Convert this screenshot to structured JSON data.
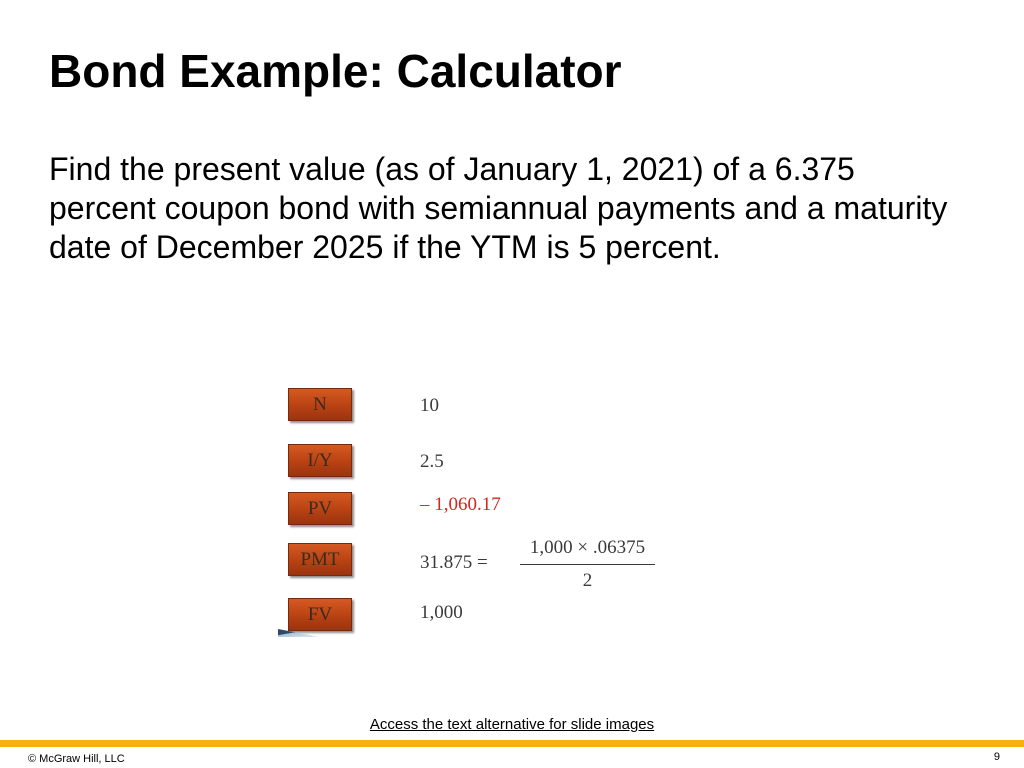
{
  "slide": {
    "title": "Bond Example: Calculator",
    "body": "Find the present value (as of January 1, 2021) of a 6.375 percent coupon bond with semiannual payments and a maturity date of December 2025 if the YTM is 5 percent."
  },
  "calculator": {
    "keys": [
      {
        "label": "N",
        "value": "10"
      },
      {
        "label": "I/Y",
        "value": "2.5"
      },
      {
        "label": "PV",
        "value": "– 1,060.17"
      },
      {
        "label": "PMT",
        "value": "31.875 ="
      },
      {
        "label": "FV",
        "value": "1,000"
      }
    ],
    "pmt_fraction": {
      "numerator": "1,000 × .06375",
      "denominator": "2"
    },
    "negative_color": "#d0261c",
    "key_color": "#b84212"
  },
  "footer": {
    "text_alternative_link": "Access the text alternative for slide images",
    "copyright": "© McGraw Hill, LLC",
    "page_number": "9",
    "accent_color": "#f5b20f"
  }
}
